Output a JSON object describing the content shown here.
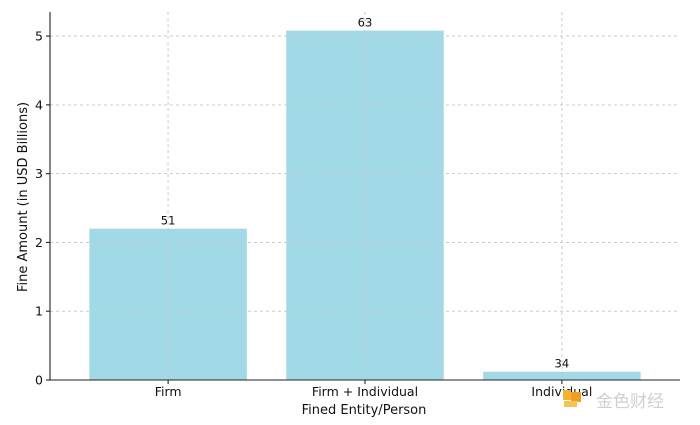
{
  "chart_data": {
    "type": "bar",
    "categories": [
      "Firm",
      "Firm + Individual",
      "Individual"
    ],
    "values": [
      2.2,
      5.08,
      0.12
    ],
    "data_labels": [
      "51",
      "63",
      "34"
    ],
    "xlabel": "Fined Entity/Person",
    "ylabel": "Fine Amount (in USD Billions)",
    "ylim": [
      0,
      5.35
    ],
    "yticks": [
      0,
      1,
      2,
      3,
      4,
      5
    ],
    "bar_color": "#a2d9e6",
    "grid": true
  },
  "watermark": {
    "text": "金色财经"
  }
}
